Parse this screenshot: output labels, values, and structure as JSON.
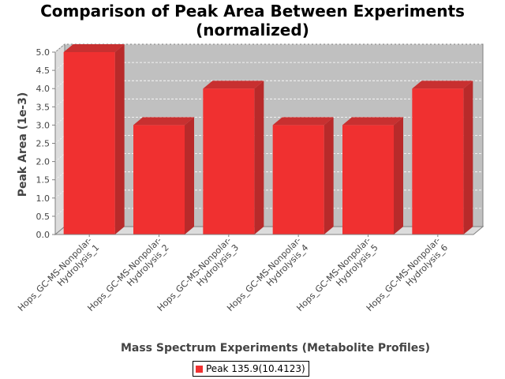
{
  "chart_data": {
    "type": "bar",
    "title_lines": [
      "Comparison of Peak Area Between Experiments",
      "(normalized)"
    ],
    "xlabel": "Mass Spectrum Experiments (Metabolite Profiles)",
    "ylabel": "Peak Area (1e-3)",
    "categories": [
      [
        "Hops_GC-MS-Nonpolar-",
        "Hydrolysis_1"
      ],
      [
        "Hops_GC-MS-Nonpolar-",
        "Hydrolysis_2"
      ],
      [
        "Hops_GC-MS-Nonpolar-",
        "Hydrolysis_3"
      ],
      [
        "Hops_GC-MS-Nonpolar-",
        "Hydrolysis_4"
      ],
      [
        "Hops_GC-MS-Nonpolar-",
        "Hydrolysis_5"
      ],
      [
        "Hops_GC-MS-Nonpolar-",
        "Hydrolysis_6"
      ]
    ],
    "series": [
      {
        "name": "Peak 135.9(10.4123)",
        "values": [
          5.0,
          3.0,
          4.0,
          3.0,
          3.0,
          4.0
        ],
        "color": "#f03030"
      }
    ],
    "ylim": [
      0,
      5.0
    ],
    "yticks": [
      "0.0",
      "0.5",
      "1.0",
      "1.5",
      "2.0",
      "2.5",
      "3.0",
      "3.5",
      "4.0",
      "4.5",
      "5.0"
    ],
    "grid": true,
    "legend_position": "bottom"
  }
}
